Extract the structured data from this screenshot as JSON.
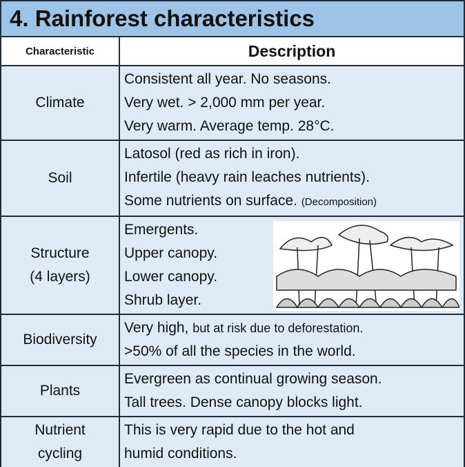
{
  "header": {
    "title": "4. Rainforest characteristics"
  },
  "table": {
    "columns": [
      "Characteristic",
      "Description"
    ],
    "rows": [
      {
        "name": [
          "Climate"
        ],
        "lines": [
          {
            "text": "Consistent all year. No seasons."
          },
          {
            "text": "Very wet. > 2,000 mm per year."
          },
          {
            "text": "Very warm. Average temp. 28°C."
          }
        ]
      },
      {
        "name": [
          "Soil"
        ],
        "lines": [
          {
            "text": "Latosol (red as rich in iron)."
          },
          {
            "text": "Infertile (heavy rain leaches nutrients)."
          },
          {
            "text": "Some nutrients on surface.",
            "note": "(Decomposition)"
          }
        ]
      },
      {
        "name": [
          "Structure",
          "(4 layers)"
        ],
        "lines": [
          {
            "text": "Emergents."
          },
          {
            "text": "Upper canopy."
          },
          {
            "text": "Lower canopy."
          },
          {
            "text": "Shrub layer."
          }
        ]
      },
      {
        "name": [
          "Biodiversity"
        ],
        "lines": [
          {
            "text": "Very high,",
            "note": "but at risk due to deforestation."
          },
          {
            "text": ">50% of all the species in the world."
          }
        ]
      },
      {
        "name": [
          "Plants"
        ],
        "lines": [
          {
            "text": "Evergreen as continual growing season."
          },
          {
            "text": "Tall trees. Dense canopy blocks light."
          }
        ]
      },
      {
        "name": [
          "Nutrient",
          "cycling"
        ],
        "lines": [
          {
            "text": "This is very rapid due to the hot and"
          },
          {
            "text": "humid conditions."
          }
        ]
      }
    ]
  }
}
